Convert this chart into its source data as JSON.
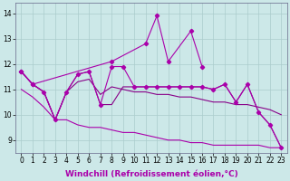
{
  "bg_color": "#cce8e8",
  "grid_color": "#aacccc",
  "line_color_main": "#aa00aa",
  "line_color_smooth": "#880088",
  "x_hours": [
    0,
    1,
    2,
    3,
    4,
    5,
    6,
    7,
    8,
    9,
    10,
    11,
    12,
    13,
    14,
    15,
    16,
    17,
    18,
    19,
    20,
    21,
    22,
    23
  ],
  "series_jagged": [
    11.7,
    11.2,
    null,
    null,
    null,
    null,
    null,
    null,
    12.1,
    null,
    null,
    12.8,
    13.9,
    12.1,
    null,
    13.3,
    11.9,
    null,
    null,
    null,
    null,
    null,
    null,
    null
  ],
  "series_marked": [
    11.7,
    11.2,
    10.9,
    9.8,
    10.9,
    11.6,
    11.7,
    10.4,
    11.9,
    11.9,
    11.1,
    11.1,
    11.1,
    11.1,
    11.1,
    11.1,
    11.1,
    11.0,
    11.2,
    10.5,
    11.2,
    10.1,
    9.6,
    8.7
  ],
  "series_upper": [
    11.7,
    11.2,
    10.9,
    9.8,
    10.9,
    11.6,
    11.7,
    10.4,
    10.4,
    11.1,
    11.1,
    11.1,
    11.1,
    11.1,
    11.1,
    11.1,
    11.1,
    11.0,
    11.2,
    10.5,
    11.2,
    10.1,
    9.6,
    8.7
  ],
  "series_mid": [
    11.7,
    11.2,
    10.9,
    9.8,
    10.9,
    11.3,
    11.4,
    10.8,
    11.1,
    11.0,
    10.9,
    10.9,
    10.8,
    10.8,
    10.7,
    10.7,
    10.6,
    10.5,
    10.5,
    10.4,
    10.4,
    10.3,
    10.2,
    10.0
  ],
  "series_lower": [
    11.0,
    10.7,
    10.3,
    9.8,
    9.8,
    9.6,
    9.5,
    9.5,
    9.4,
    9.3,
    9.3,
    9.2,
    9.1,
    9.0,
    9.0,
    8.9,
    8.9,
    8.8,
    8.8,
    8.8,
    8.8,
    8.8,
    8.7,
    8.7
  ],
  "xlabel": "Windchill (Refroidissement éolien,°C)",
  "tick_fontsize": 5.5,
  "label_fontsize": 6.5
}
